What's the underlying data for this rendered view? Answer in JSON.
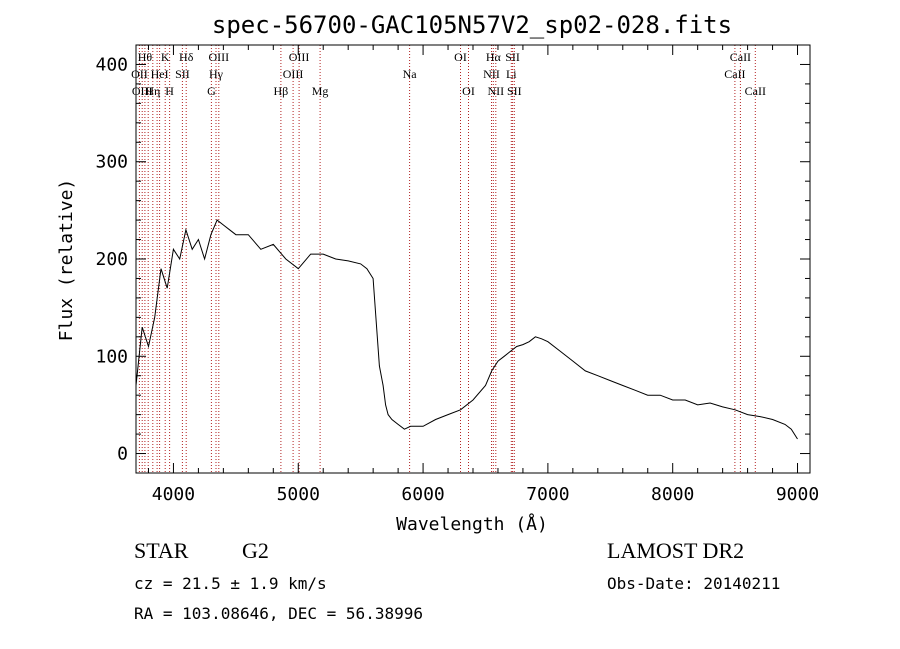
{
  "chart_data": {
    "type": "line",
    "title": "spec-56700-GAC105N57V2_sp02-028.fits",
    "xlabel": "Wavelength (Å)",
    "ylabel": "Flux (relative)",
    "xlim": [
      3700,
      9100
    ],
    "ylim": [
      -20,
      420
    ],
    "x_ticks": [
      4000,
      5000,
      6000,
      7000,
      8000,
      9000
    ],
    "x_tick_labels": [
      "4000",
      "5000",
      "6000",
      "7000",
      "8000",
      "9000"
    ],
    "y_ticks": [
      0,
      100,
      200,
      300,
      400
    ],
    "y_tick_labels": [
      "0",
      "100",
      "200",
      "300",
      "400"
    ],
    "grid": false,
    "line_color": "#000000",
    "marker_color": "#b22222",
    "series": [
      {
        "x": [
          3700,
          3750,
          3800,
          3850,
          3900,
          3950,
          4000,
          4050,
          4100,
          4150,
          4200,
          4250,
          4300,
          4350,
          4400,
          4450,
          4500,
          4600,
          4700,
          4800,
          4900,
          5000,
          5100,
          5200,
          5300,
          5400,
          5500,
          5550,
          5600,
          5650,
          5680,
          5700,
          5720,
          5750,
          5800,
          5850,
          5900,
          5950,
          6000,
          6100,
          6200,
          6300,
          6400,
          6500,
          6550,
          6600,
          6650,
          6700,
          6750,
          6800,
          6850,
          6900,
          6950,
          7000,
          7100,
          7200,
          7300,
          7400,
          7500,
          7600,
          7700,
          7800,
          7900,
          8000,
          8100,
          8200,
          8300,
          8400,
          8500,
          8600,
          8700,
          8800,
          8900,
          8950,
          9000
        ],
        "y": [
          70,
          130,
          110,
          140,
          190,
          170,
          210,
          200,
          230,
          210,
          220,
          200,
          225,
          240,
          235,
          230,
          225,
          225,
          210,
          215,
          200,
          190,
          205,
          205,
          200,
          198,
          195,
          190,
          180,
          90,
          70,
          50,
          40,
          35,
          30,
          25,
          28,
          28,
          28,
          35,
          40,
          45,
          55,
          70,
          85,
          95,
          100,
          105,
          110,
          112,
          115,
          120,
          118,
          115,
          105,
          95,
          85,
          80,
          75,
          70,
          65,
          60,
          60,
          55,
          55,
          50,
          52,
          48,
          45,
          40,
          38,
          35,
          30,
          25,
          15
        ]
      }
    ],
    "line_markers": [
      {
        "x": 3727,
        "label": "OII",
        "row": 1
      },
      {
        "x": 3750,
        "label": "OIII",
        "row": 2
      },
      {
        "x": 3771,
        "label": "Hθ",
        "row": 0
      },
      {
        "x": 3798,
        "label": "",
        "row": -1
      },
      {
        "x": 3835,
        "label": "Hη",
        "row": 2
      },
      {
        "x": 3869,
        "label": "",
        "row": -1
      },
      {
        "x": 3889,
        "label": "HeI",
        "row": 1
      },
      {
        "x": 3934,
        "label": "K",
        "row": 0
      },
      {
        "x": 3969,
        "label": "H",
        "row": 2
      },
      {
        "x": 4072,
        "label": "SII",
        "row": 1
      },
      {
        "x": 4102,
        "label": "Hδ",
        "row": 0
      },
      {
        "x": 4304,
        "label": "G",
        "row": 2
      },
      {
        "x": 4341,
        "label": "Hγ",
        "row": 1
      },
      {
        "x": 4363,
        "label": "OIII",
        "row": 0
      },
      {
        "x": 4861,
        "label": "Hβ",
        "row": 2
      },
      {
        "x": 4959,
        "label": "OIII",
        "row": 1
      },
      {
        "x": 5007,
        "label": "OIII",
        "row": 0
      },
      {
        "x": 5175,
        "label": "Mg",
        "row": 2
      },
      {
        "x": 5892,
        "label": "Na",
        "row": 1
      },
      {
        "x": 6300,
        "label": "OI",
        "row": 0
      },
      {
        "x": 6364,
        "label": "OI",
        "row": 2
      },
      {
        "x": 6548,
        "label": "NII",
        "row": 1
      },
      {
        "x": 6563,
        "label": "Hα",
        "row": 0
      },
      {
        "x": 6583,
        "label": "NII",
        "row": 2
      },
      {
        "x": 6707,
        "label": "Li",
        "row": 1
      },
      {
        "x": 6717,
        "label": "SII",
        "row": 0
      },
      {
        "x": 6731,
        "label": "SII",
        "row": 2
      },
      {
        "x": 8498,
        "label": "CaII",
        "row": 1
      },
      {
        "x": 8542,
        "label": "CaII",
        "row": 0
      },
      {
        "x": 8662,
        "label": "CaII",
        "row": 2
      }
    ]
  },
  "info": {
    "object_class": "STAR",
    "subclass": "G2",
    "survey": "LAMOST DR2",
    "redshift": "cz = 21.5 ± 1.9 km/s",
    "obs_date": "Obs-Date: 20140211",
    "coords": "RA = 103.08646, DEC =  56.38996"
  }
}
